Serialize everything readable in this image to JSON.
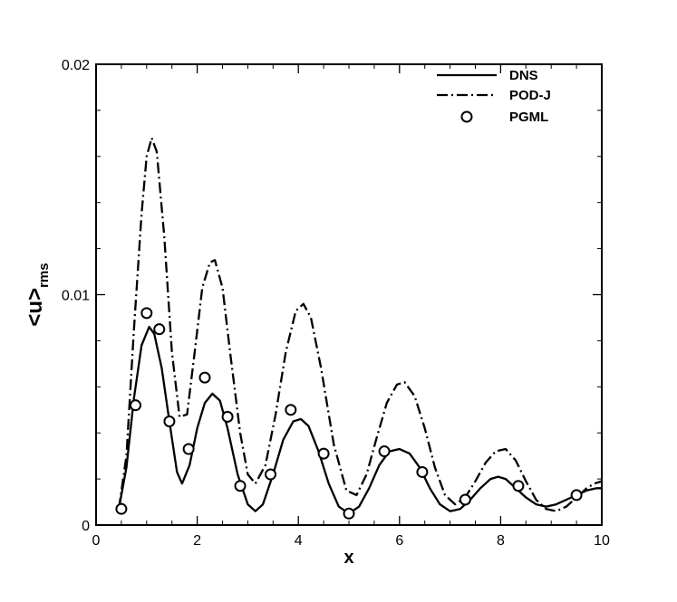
{
  "chart_data": {
    "type": "line",
    "xlabel": "x",
    "ylabel_main": "<u>",
    "ylabel_sub": "rms",
    "xlim": [
      0,
      10
    ],
    "ylim": [
      0,
      0.02
    ],
    "x_ticks": [
      0,
      2,
      4,
      6,
      8,
      10
    ],
    "x_tick_labels": [
      "0",
      "2",
      "4",
      "6",
      "8",
      "10"
    ],
    "y_ticks": [
      0,
      0.01,
      0.02
    ],
    "y_tick_labels": [
      "0",
      "0.01",
      "0.02"
    ],
    "x_minor_step": 0.5,
    "y_minor_step": 0.002,
    "grid": false,
    "legend_position": "top-right",
    "series": [
      {
        "name": "DNS",
        "style": "solid",
        "x": [
          0.45,
          0.6,
          0.75,
          0.9,
          1.05,
          1.15,
          1.3,
          1.45,
          1.6,
          1.7,
          1.85,
          2.0,
          2.15,
          2.3,
          2.45,
          2.6,
          2.8,
          3.0,
          3.15,
          3.3,
          3.5,
          3.7,
          3.9,
          4.05,
          4.2,
          4.4,
          4.6,
          4.8,
          5.0,
          5.2,
          5.4,
          5.6,
          5.8,
          6.0,
          6.2,
          6.4,
          6.6,
          6.8,
          7.0,
          7.2,
          7.4,
          7.6,
          7.8,
          7.95,
          8.1,
          8.3,
          8.5,
          8.7,
          8.9,
          9.1,
          9.3,
          9.5,
          9.7,
          9.9,
          10.0
        ],
        "y": [
          0.0007,
          0.0025,
          0.0055,
          0.0078,
          0.0086,
          0.0083,
          0.0068,
          0.0045,
          0.0023,
          0.0018,
          0.0026,
          0.0042,
          0.0053,
          0.0057,
          0.0054,
          0.0042,
          0.0022,
          0.0009,
          0.0006,
          0.0009,
          0.0022,
          0.0037,
          0.0045,
          0.0046,
          0.0043,
          0.0032,
          0.0018,
          0.0008,
          0.0005,
          0.0008,
          0.0016,
          0.0026,
          0.0032,
          0.0033,
          0.0031,
          0.0025,
          0.0016,
          0.0009,
          0.0006,
          0.0007,
          0.0011,
          0.0016,
          0.002,
          0.0021,
          0.002,
          0.0016,
          0.0012,
          0.0009,
          0.0008,
          0.0009,
          0.0011,
          0.0013,
          0.0015,
          0.0016,
          0.0016
        ]
      },
      {
        "name": "POD-J",
        "style": "dashdot",
        "x": [
          0.45,
          0.6,
          0.75,
          0.9,
          1.0,
          1.1,
          1.2,
          1.35,
          1.5,
          1.65,
          1.8,
          1.95,
          2.1,
          2.25,
          2.35,
          2.5,
          2.65,
          2.85,
          3.0,
          3.15,
          3.35,
          3.55,
          3.75,
          3.95,
          4.1,
          4.25,
          4.45,
          4.7,
          4.95,
          5.15,
          5.35,
          5.55,
          5.75,
          5.95,
          6.1,
          6.3,
          6.5,
          6.7,
          6.9,
          7.1,
          7.3,
          7.5,
          7.7,
          7.9,
          8.1,
          8.3,
          8.5,
          8.7,
          8.9,
          9.1,
          9.3,
          9.5,
          9.7,
          9.85,
          10.0
        ],
        "y": [
          0.0007,
          0.003,
          0.0085,
          0.0135,
          0.016,
          0.0168,
          0.0162,
          0.0125,
          0.0075,
          0.0047,
          0.0048,
          0.0075,
          0.0103,
          0.0114,
          0.0115,
          0.0103,
          0.0075,
          0.004,
          0.0022,
          0.0018,
          0.0026,
          0.0048,
          0.0075,
          0.0093,
          0.0096,
          0.009,
          0.0068,
          0.0035,
          0.0015,
          0.0013,
          0.0022,
          0.0038,
          0.0053,
          0.0061,
          0.0062,
          0.0056,
          0.0042,
          0.0025,
          0.0013,
          0.0009,
          0.0012,
          0.0019,
          0.0027,
          0.0032,
          0.0033,
          0.0028,
          0.0019,
          0.0011,
          0.0007,
          0.0006,
          0.0008,
          0.0012,
          0.0016,
          0.0018,
          0.0019
        ]
      },
      {
        "name": "PGML",
        "style": "circle",
        "x": [
          0.5,
          0.78,
          1.0,
          1.25,
          1.45,
          1.83,
          2.15,
          2.6,
          2.85,
          3.45,
          3.85,
          4.5,
          5.0,
          5.7,
          6.45,
          7.3,
          8.35,
          9.5
        ],
        "y": [
          0.0007,
          0.0052,
          0.0092,
          0.0085,
          0.0045,
          0.0033,
          0.0064,
          0.0047,
          0.0017,
          0.0022,
          0.005,
          0.0031,
          0.0005,
          0.0032,
          0.0023,
          0.0011,
          0.0017,
          0.0013
        ]
      }
    ]
  }
}
